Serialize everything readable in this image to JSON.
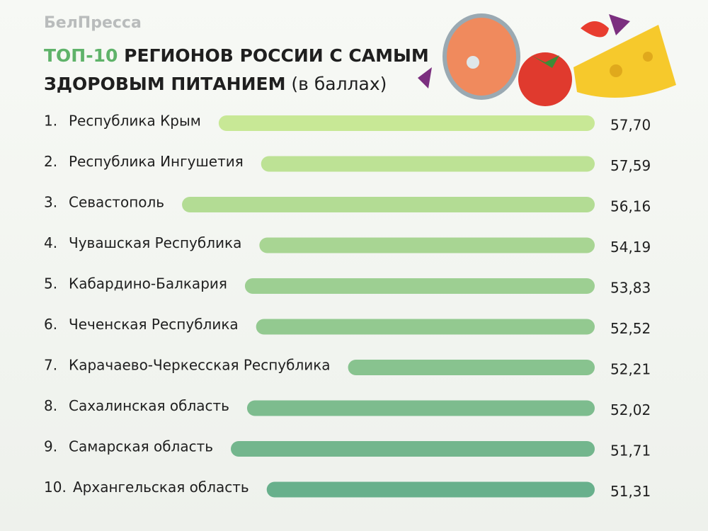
{
  "header": {
    "brand": "БелПресса"
  },
  "title": {
    "highlight": "ТОП-10",
    "line1": "РЕГИОНОВ РОССИИ С САМЫМ",
    "line2": "ЗДОРОВЫМ ПИТАНИЕМ",
    "note": "(в баллах)"
  },
  "rows": [
    {
      "rank": "1.",
      "name": "Республика Крым",
      "score": "57,70"
    },
    {
      "rank": "2.",
      "name": "Республика Ингушетия",
      "score": "57,59"
    },
    {
      "rank": "3.",
      "name": "Севастополь",
      "score": "56,16"
    },
    {
      "rank": "4.",
      "name": "Чувашская Республика",
      "score": "54,19"
    },
    {
      "rank": "5.",
      "name": "Кабардино-Балкария",
      "score": "53,83"
    },
    {
      "rank": "6.",
      "name": "Чеченская Республика",
      "score": "52,52"
    },
    {
      "rank": "7.",
      "name": "Карачаево-Черкесская Республика",
      "score": "52,21"
    },
    {
      "rank": "8.",
      "name": "Сахалинская область",
      "score": "52,02"
    },
    {
      "rank": "9.",
      "name": "Самарская область",
      "score": "51,71"
    },
    {
      "rank": "10.",
      "name": "Архангельская область",
      "score": "51,31"
    }
  ]
}
